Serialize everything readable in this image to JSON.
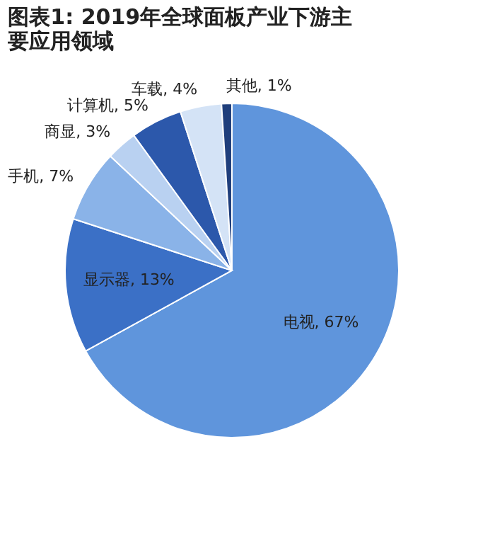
{
  "chart_data": {
    "type": "pie",
    "title": "图表1: 2019年全球面板产业下游主要应用领域",
    "categories": [
      "电视",
      "显示器",
      "手机",
      "商显",
      "计算机",
      "车载",
      "其他"
    ],
    "values": [
      67,
      13,
      7,
      3,
      5,
      4,
      1
    ],
    "value_labels": [
      "67%",
      "13%",
      "7%",
      "3%",
      "5%",
      "4%",
      "1%"
    ],
    "colors": [
      "#5f95dc",
      "#3b70c6",
      "#8ab3e8",
      "#b9d1f1",
      "#2c58ab",
      "#d4e3f6",
      "#203f7c"
    ],
    "legend": false
  }
}
